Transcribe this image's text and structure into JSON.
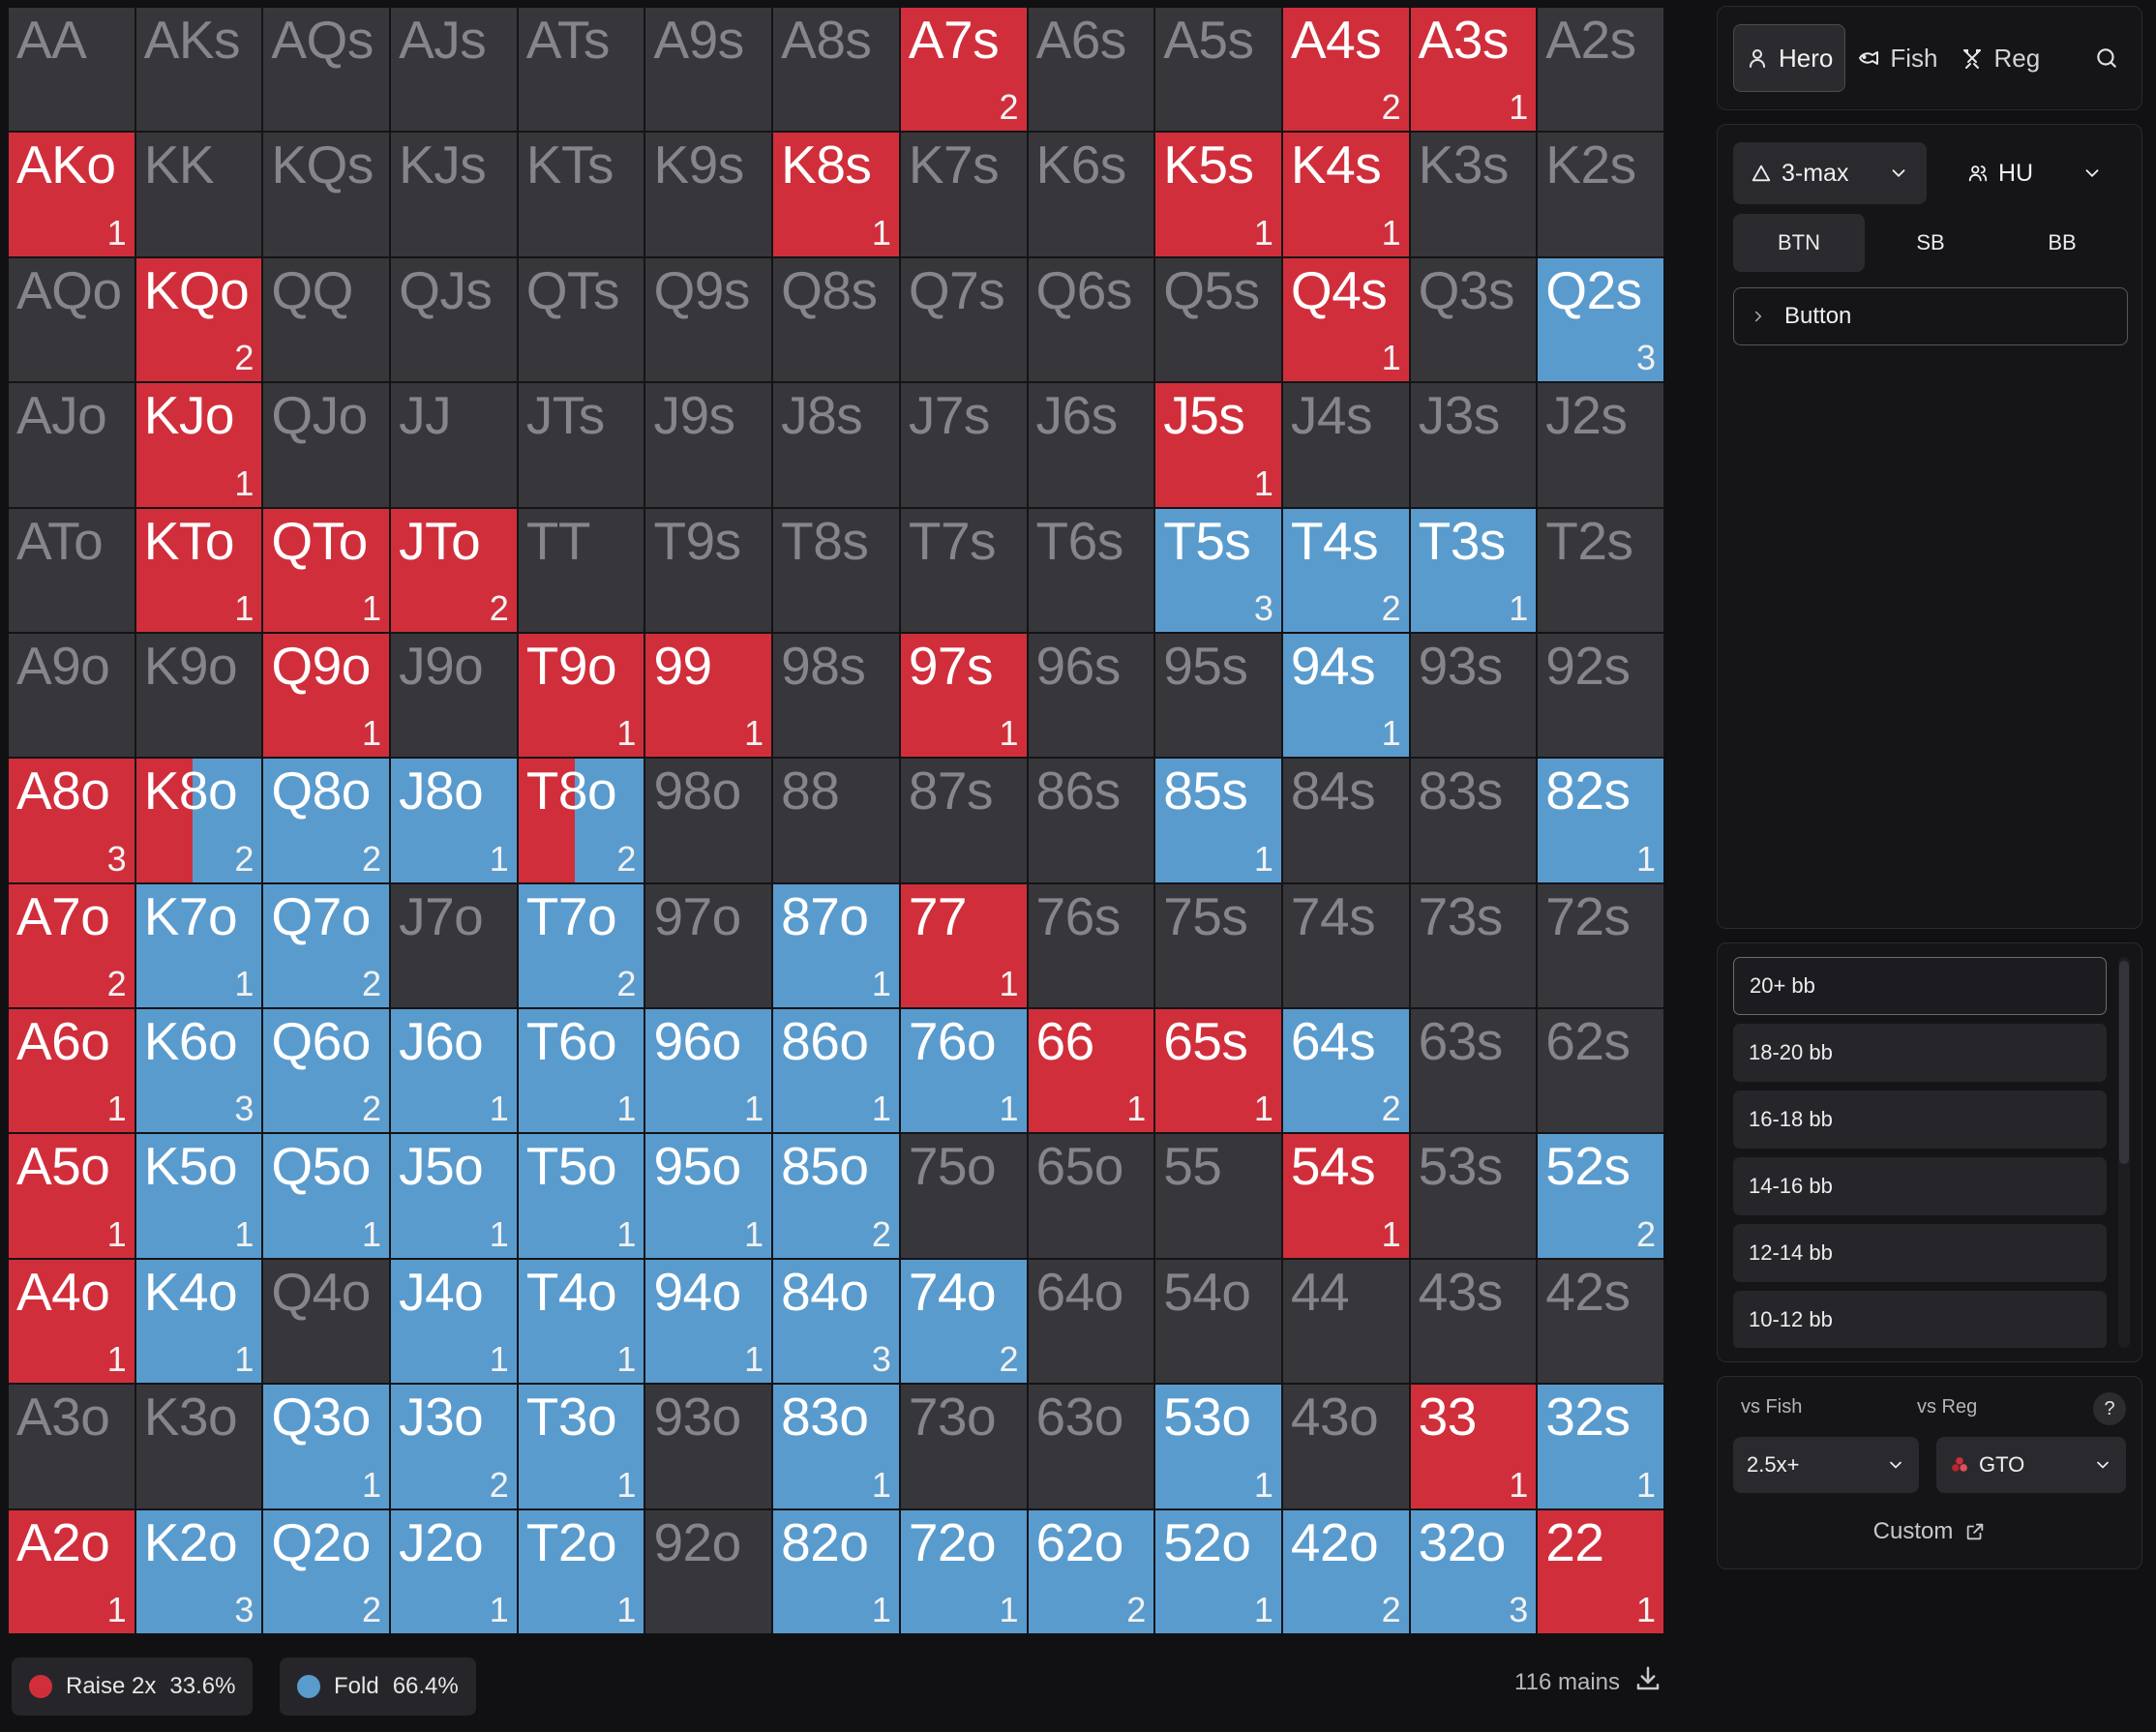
{
  "colors": {
    "raise": "#d12e3b",
    "fold": "#5a9bce",
    "empty": "#37373b"
  },
  "grid": {
    "hands": [
      [
        "AA",
        "AKs",
        "AQs",
        "AJs",
        "ATs",
        "A9s",
        "A8s",
        "A7s",
        "A6s",
        "A5s",
        "A4s",
        "A3s",
        "A2s"
      ],
      [
        "AKo",
        "KK",
        "KQs",
        "KJs",
        "KTs",
        "K9s",
        "K8s",
        "K7s",
        "K6s",
        "K5s",
        "K4s",
        "K3s",
        "K2s"
      ],
      [
        "AQo",
        "KQo",
        "QQ",
        "QJs",
        "QTs",
        "Q9s",
        "Q8s",
        "Q7s",
        "Q6s",
        "Q5s",
        "Q4s",
        "Q3s",
        "Q2s"
      ],
      [
        "AJo",
        "KJo",
        "QJo",
        "JJ",
        "JTs",
        "J9s",
        "J8s",
        "J7s",
        "J6s",
        "J5s",
        "J4s",
        "J3s",
        "J2s"
      ],
      [
        "ATo",
        "KTo",
        "QTo",
        "JTo",
        "TT",
        "T9s",
        "T8s",
        "T7s",
        "T6s",
        "T5s",
        "T4s",
        "T3s",
        "T2s"
      ],
      [
        "A9o",
        "K9o",
        "Q9o",
        "J9o",
        "T9o",
        "99",
        "98s",
        "97s",
        "96s",
        "95s",
        "94s",
        "93s",
        "92s"
      ],
      [
        "A8o",
        "K8o",
        "Q8o",
        "J8o",
        "T8o",
        "98o",
        "88",
        "87s",
        "86s",
        "85s",
        "84s",
        "83s",
        "82s"
      ],
      [
        "A7o",
        "K7o",
        "Q7o",
        "J7o",
        "T7o",
        "97o",
        "87o",
        "77",
        "76s",
        "75s",
        "74s",
        "73s",
        "72s"
      ],
      [
        "A6o",
        "K6o",
        "Q6o",
        "J6o",
        "T6o",
        "96o",
        "86o",
        "76o",
        "66",
        "65s",
        "64s",
        "63s",
        "62s"
      ],
      [
        "A5o",
        "K5o",
        "Q5o",
        "J5o",
        "T5o",
        "95o",
        "85o",
        "75o",
        "65o",
        "55",
        "54s",
        "53s",
        "52s"
      ],
      [
        "A4o",
        "K4o",
        "Q4o",
        "J4o",
        "T4o",
        "94o",
        "84o",
        "74o",
        "64o",
        "54o",
        "44",
        "43s",
        "42s"
      ],
      [
        "A3o",
        "K3o",
        "Q3o",
        "J3o",
        "T3o",
        "93o",
        "83o",
        "73o",
        "63o",
        "53o",
        "43o",
        "33",
        "32s"
      ],
      [
        "A2o",
        "K2o",
        "Q2o",
        "J2o",
        "T2o",
        "92o",
        "82o",
        "72o",
        "62o",
        "52o",
        "42o",
        "32o",
        "22"
      ]
    ],
    "actions": [
      [
        "",
        "",
        "",
        "",
        "",
        "",
        "",
        "R",
        "",
        "",
        "R",
        "R",
        ""
      ],
      [
        "R",
        "",
        "",
        "",
        "",
        "",
        "R",
        "",
        "",
        "R",
        "R",
        "",
        ""
      ],
      [
        "",
        "R",
        "",
        "",
        "",
        "",
        "",
        "",
        "",
        "",
        "R",
        "",
        "F"
      ],
      [
        "",
        "R",
        "",
        "",
        "",
        "",
        "",
        "",
        "",
        "R",
        "",
        "",
        ""
      ],
      [
        "",
        "R",
        "R",
        "R",
        "",
        "",
        "",
        "",
        "",
        "F",
        "F",
        "F",
        ""
      ],
      [
        "",
        "",
        "R",
        "",
        "R",
        "R",
        "",
        "R",
        "",
        "",
        "F",
        "",
        ""
      ],
      [
        "R",
        "M",
        "F",
        "F",
        "M",
        "",
        "",
        "",
        "",
        "F",
        "",
        "",
        "F"
      ],
      [
        "R",
        "F",
        "F",
        "",
        "F",
        "",
        "F",
        "R",
        "",
        "",
        "",
        "",
        ""
      ],
      [
        "R",
        "F",
        "F",
        "F",
        "F",
        "F",
        "F",
        "F",
        "R",
        "R",
        "F",
        "",
        ""
      ],
      [
        "R",
        "F",
        "F",
        "F",
        "F",
        "F",
        "F",
        "",
        "",
        "",
        "R",
        "",
        "F"
      ],
      [
        "R",
        "F",
        "",
        "F",
        "F",
        "F",
        "F",
        "F",
        "",
        "",
        "",
        "",
        ""
      ],
      [
        "",
        "",
        "F",
        "F",
        "F",
        "",
        "F",
        "",
        "",
        "F",
        "",
        "R",
        "F"
      ],
      [
        "R",
        "F",
        "F",
        "F",
        "F",
        "",
        "F",
        "F",
        "F",
        "F",
        "F",
        "F",
        "R"
      ]
    ],
    "counts": [
      [
        "",
        "",
        "",
        "",
        "",
        "",
        "",
        "2",
        "",
        "",
        "2",
        "1",
        ""
      ],
      [
        "1",
        "",
        "",
        "",
        "",
        "",
        "1",
        "",
        "",
        "1",
        "1",
        "",
        ""
      ],
      [
        "",
        "2",
        "",
        "",
        "",
        "",
        "",
        "",
        "",
        "",
        "1",
        "",
        "3"
      ],
      [
        "",
        "1",
        "",
        "",
        "",
        "",
        "",
        "",
        "",
        "1",
        "",
        "",
        ""
      ],
      [
        "",
        "1",
        "1",
        "2",
        "",
        "",
        "",
        "",
        "",
        "3",
        "2",
        "1",
        ""
      ],
      [
        "",
        "",
        "1",
        "",
        "1",
        "1",
        "",
        "1",
        "",
        "",
        "1",
        "",
        ""
      ],
      [
        "3",
        "2",
        "2",
        "1",
        "2",
        "",
        "",
        "",
        "",
        "1",
        "",
        "",
        "1"
      ],
      [
        "2",
        "1",
        "2",
        "",
        "2",
        "",
        "1",
        "1",
        "",
        "",
        "",
        "",
        ""
      ],
      [
        "1",
        "3",
        "2",
        "1",
        "1",
        "1",
        "1",
        "1",
        "1",
        "1",
        "2",
        "",
        ""
      ],
      [
        "1",
        "1",
        "1",
        "1",
        "1",
        "1",
        "2",
        "",
        "",
        "",
        "1",
        "",
        "2"
      ],
      [
        "1",
        "1",
        "",
        "1",
        "1",
        "1",
        "3",
        "2",
        "",
        "",
        "",
        "",
        ""
      ],
      [
        "",
        "",
        "1",
        "2",
        "1",
        "",
        "1",
        "",
        "",
        "1",
        "",
        "1",
        "1"
      ],
      [
        "1",
        "3",
        "2",
        "1",
        "1",
        "",
        "1",
        "1",
        "2",
        "1",
        "2",
        "3",
        "1"
      ]
    ],
    "mixed_raise_fraction": 0.45
  },
  "legend": {
    "raise": {
      "label": "Raise 2x",
      "pct": "33.6%"
    },
    "fold": {
      "label": "Fold",
      "pct": "66.4%"
    },
    "combos": "116 mains"
  },
  "sidebar": {
    "tabs": [
      {
        "label": "Hero",
        "icon": "user-icon",
        "selected": true
      },
      {
        "label": "Fish",
        "icon": "fish-icon",
        "selected": false
      },
      {
        "label": "Reg",
        "icon": "crossed-swords-icon",
        "selected": false
      }
    ],
    "format": "3-max",
    "mode": "HU",
    "positions": [
      {
        "label": "BTN",
        "selected": true
      },
      {
        "label": "SB",
        "selected": false
      },
      {
        "label": "BB",
        "selected": false
      }
    ],
    "action": "Button",
    "stacks": [
      {
        "label": "20+ bb",
        "selected": true
      },
      {
        "label": "18-20 bb",
        "selected": false
      },
      {
        "label": "16-18 bb",
        "selected": false
      },
      {
        "label": "14-16 bb",
        "selected": false
      },
      {
        "label": "12-14 bb",
        "selected": false
      },
      {
        "label": "10-12 bb",
        "selected": false
      }
    ],
    "vs_fish_label": "vs Fish",
    "vs_reg_label": "vs Reg",
    "help": "?",
    "vs_fish_value": "2.5x+",
    "vs_reg_value": "GTO",
    "custom": "Custom"
  }
}
